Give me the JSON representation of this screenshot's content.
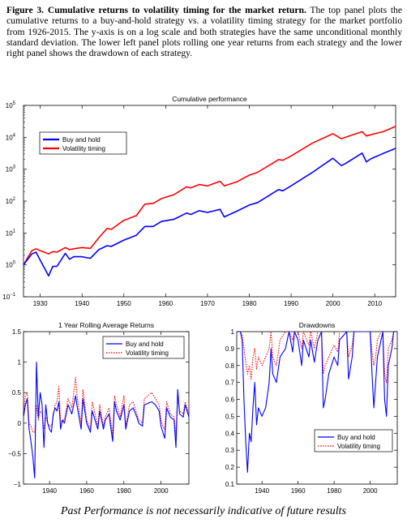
{
  "caption": {
    "label": "Figure 3.",
    "title": "Cumulative returns to volatility timing for the market return.",
    "body": "The top panel plots the cumulative returns to a buy-and-hold strategy vs. a volatility timing strategy for the market portfolio from 1926-2015. The y-axis is on a log scale and both strategies have the same unconditional monthly standard deviation. The lower left panel plots rolling one year returns from each strategy and the lower right panel shows the drawdown of each strategy."
  },
  "footer": "Past Performance is not necessarily indicative of future results",
  "colors": {
    "buy_and_hold": "#0000ff",
    "volatility_timing": "#ff0000",
    "axis": "#000000"
  },
  "chart_data": [
    {
      "id": "cumulative",
      "type": "line",
      "title": "Cumulative performance",
      "xlabel": "",
      "ylabel": "",
      "xlim": [
        1926,
        2015
      ],
      "ylim": [
        0.1,
        100000
      ],
      "yscale": "log",
      "x_ticks": [
        1930,
        1940,
        1950,
        1960,
        1970,
        1980,
        1990,
        2000,
        2010
      ],
      "y_ticks": [
        {
          "value": 0.1,
          "base": "10",
          "exp": "−1"
        },
        {
          "value": 1,
          "base": "10",
          "exp": "0"
        },
        {
          "value": 10,
          "base": "10",
          "exp": "1"
        },
        {
          "value": 100,
          "base": "10",
          "exp": "2"
        },
        {
          "value": 1000,
          "base": "10",
          "exp": "3"
        },
        {
          "value": 10000,
          "base": "10",
          "exp": "4"
        },
        {
          "value": 100000,
          "base": "10",
          "exp": "5"
        }
      ],
      "legend_position": "top-left",
      "series": [
        {
          "name": "Buy and hold",
          "color": "#0000ff",
          "x": [
            1926,
            1927,
            1928,
            1929,
            1930,
            1931,
            1932,
            1933,
            1934,
            1936,
            1937,
            1938,
            1940,
            1942,
            1944,
            1946,
            1947,
            1950,
            1953,
            1955,
            1957,
            1959,
            1962,
            1965,
            1966,
            1968,
            1970,
            1973,
            1974,
            1977,
            1980,
            1982,
            1987,
            1988,
            1990,
            1995,
            2000,
            2002,
            2003,
            2007,
            2008,
            2009,
            2012,
            2015
          ],
          "y": [
            1.0,
            1.5,
            2.2,
            2.5,
            1.4,
            0.8,
            0.45,
            0.9,
            0.9,
            2.3,
            1.5,
            1.8,
            1.8,
            1.6,
            3.0,
            4.0,
            3.8,
            6.0,
            8.5,
            16,
            16,
            23,
            27,
            42,
            38,
            50,
            44,
            55,
            32,
            48,
            75,
            90,
            230,
            210,
            300,
            780,
            2200,
            1300,
            1500,
            3200,
            1700,
            2100,
            3100,
            4500
          ]
        },
        {
          "name": "Volatility timing",
          "color": "#ff0000",
          "x": [
            1926,
            1927,
            1928,
            1929,
            1930,
            1931,
            1932,
            1933,
            1934,
            1936,
            1937,
            1938,
            1940,
            1942,
            1944,
            1946,
            1947,
            1950,
            1953,
            1955,
            1957,
            1959,
            1962,
            1965,
            1966,
            1968,
            1970,
            1973,
            1974,
            1977,
            1980,
            1982,
            1987,
            1988,
            1990,
            1995,
            2000,
            2002,
            2003,
            2007,
            2008,
            2009,
            2012,
            2015
          ],
          "y": [
            1.0,
            1.7,
            2.8,
            3.2,
            2.8,
            2.5,
            2.2,
            2.6,
            2.5,
            3.5,
            3.0,
            3.2,
            3.5,
            3.3,
            7,
            14,
            13,
            25,
            35,
            80,
            85,
            120,
            160,
            280,
            260,
            330,
            300,
            420,
            300,
            400,
            650,
            800,
            2000,
            1900,
            2600,
            6500,
            13000,
            9000,
            10000,
            15000,
            11000,
            12000,
            15000,
            22000
          ]
        }
      ]
    },
    {
      "id": "rolling",
      "type": "line",
      "title": "1 Year Rolling Average Returns",
      "xlabel": "",
      "ylabel": "",
      "xlim": [
        1926,
        2015
      ],
      "ylim": [
        -1,
        1.5
      ],
      "x_ticks": [
        1940,
        1960,
        1980,
        2000
      ],
      "y_ticks": [
        -1,
        -0.5,
        0,
        0.5,
        1,
        1.5
      ],
      "y_tick_labels": [
        "−1",
        "−0.5",
        "0",
        "0.5",
        "1",
        "1.5"
      ],
      "legend_position": "top-right",
      "series": [
        {
          "name": "Buy and hold",
          "color": "#0000ff",
          "style": "solid",
          "x": [
            1926,
            1927,
            1928,
            1929,
            1930,
            1931,
            1932,
            1933,
            1934,
            1935,
            1936,
            1937,
            1938,
            1939,
            1940,
            1941,
            1942,
            1943,
            1944,
            1945,
            1946,
            1947,
            1948,
            1950,
            1952,
            1954,
            1955,
            1957,
            1958,
            1960,
            1962,
            1963,
            1966,
            1967,
            1969,
            1970,
            1972,
            1974,
            1975,
            1976,
            1978,
            1980,
            1981,
            1983,
            1985,
            1987,
            1988,
            1990,
            1991,
            1995,
            1997,
            1999,
            2000,
            2001,
            2002,
            2003,
            2005,
            2007,
            2008,
            2009,
            2010,
            2012,
            2013,
            2015
          ],
          "y": [
            0.1,
            0.3,
            0.4,
            -0.1,
            -0.3,
            -0.55,
            -0.9,
            1.0,
            0.1,
            0.5,
            0.3,
            -0.4,
            0.3,
            0.0,
            -0.1,
            -0.15,
            0.15,
            0.25,
            0.2,
            0.35,
            -0.1,
            0.05,
            0.0,
            0.3,
            0.15,
            0.45,
            0.25,
            -0.1,
            0.4,
            0.0,
            -0.15,
            0.2,
            -0.1,
            0.2,
            -0.1,
            0.05,
            0.15,
            -0.3,
            0.35,
            0.2,
            0.05,
            0.3,
            -0.1,
            0.2,
            0.25,
            0.1,
            0.0,
            -0.05,
            0.3,
            0.35,
            0.3,
            0.2,
            -0.05,
            -0.15,
            -0.25,
            0.25,
            0.1,
            0.05,
            -0.4,
            0.55,
            0.15,
            0.1,
            0.3,
            0.1
          ]
        },
        {
          "name": "Volatility timing",
          "color": "#ff0000",
          "style": "dotted",
          "x": [
            1926,
            1927,
            1928,
            1929,
            1930,
            1931,
            1932,
            1933,
            1934,
            1935,
            1936,
            1937,
            1938,
            1939,
            1940,
            1941,
            1942,
            1943,
            1944,
            1945,
            1946,
            1947,
            1948,
            1950,
            1952,
            1954,
            1955,
            1957,
            1958,
            1960,
            1962,
            1963,
            1966,
            1967,
            1969,
            1970,
            1972,
            1974,
            1975,
            1976,
            1978,
            1980,
            1981,
            1983,
            1985,
            1987,
            1988,
            1990,
            1991,
            1995,
            1997,
            1999,
            2000,
            2001,
            2002,
            2003,
            2005,
            2007,
            2008,
            2009,
            2010,
            2012,
            2013,
            2015
          ],
          "y": [
            0.15,
            0.45,
            0.5,
            0.0,
            -0.05,
            -0.15,
            -0.15,
            0.3,
            0.05,
            0.2,
            0.15,
            -0.1,
            0.1,
            0.0,
            -0.05,
            -0.05,
            0.1,
            0.3,
            0.35,
            0.6,
            0.0,
            0.05,
            0.05,
            0.4,
            0.25,
            0.75,
            0.4,
            0.0,
            0.55,
            0.05,
            -0.1,
            0.35,
            -0.05,
            0.3,
            -0.05,
            0.1,
            0.25,
            -0.2,
            0.45,
            0.3,
            0.1,
            0.45,
            -0.05,
            0.3,
            0.35,
            0.15,
            0.05,
            0.0,
            0.4,
            0.5,
            0.4,
            0.3,
            0.05,
            -0.05,
            -0.1,
            0.35,
            0.15,
            0.1,
            -0.2,
            0.45,
            0.2,
            0.15,
            0.35,
            0.15
          ]
        }
      ]
    },
    {
      "id": "drawdowns",
      "type": "line",
      "title": "Drawdowns",
      "xlabel": "",
      "ylabel": "",
      "xlim": [
        1926,
        2015
      ],
      "ylim": [
        0.1,
        1
      ],
      "x_ticks": [
        1940,
        1960,
        1980,
        2000
      ],
      "y_ticks": [
        0.1,
        0.2,
        0.3,
        0.4,
        0.5,
        0.6,
        0.7,
        0.8,
        0.9,
        1
      ],
      "y_tick_labels": [
        "0.1",
        "0.2",
        "0.3",
        "0.4",
        "0.5",
        "0.6",
        "0.7",
        "0.8",
        "0.9",
        "1"
      ],
      "legend_position": "bottom-right",
      "series": [
        {
          "name": "Buy and hold",
          "color": "#0000ff",
          "style": "solid",
          "x": [
            1926,
            1928,
            1929,
            1930,
            1931,
            1932,
            1933,
            1934,
            1935,
            1936,
            1937,
            1938,
            1940,
            1942,
            1944,
            1945,
            1946,
            1948,
            1950,
            1953,
            1955,
            1957,
            1958,
            1960,
            1962,
            1963,
            1966,
            1967,
            1969,
            1971,
            1973,
            1974,
            1975,
            1977,
            1980,
            1982,
            1983,
            1987,
            1988,
            1990,
            1991,
            1995,
            2000,
            2001,
            2002,
            2003,
            2004,
            2006,
            2007,
            2008,
            2009,
            2010,
            2012,
            2013,
            2015
          ],
          "y": [
            1.0,
            1.0,
            0.95,
            0.6,
            0.35,
            0.17,
            0.4,
            0.35,
            0.55,
            0.7,
            0.45,
            0.55,
            0.5,
            0.55,
            0.7,
            0.9,
            0.75,
            0.7,
            0.85,
            0.9,
            1.0,
            0.88,
            1.0,
            0.95,
            0.8,
            0.95,
            0.85,
            0.95,
            0.82,
            0.95,
            1.0,
            0.55,
            0.6,
            0.75,
            0.85,
            0.8,
            0.95,
            1.0,
            0.72,
            0.85,
            1.0,
            1.0,
            1.0,
            0.75,
            0.55,
            0.7,
            0.85,
            0.95,
            1.0,
            0.6,
            0.5,
            0.8,
            0.9,
            1.0,
            1.0
          ]
        },
        {
          "name": "Volatility timing",
          "color": "#ff0000",
          "style": "dotted",
          "x": [
            1926,
            1928,
            1929,
            1930,
            1931,
            1932,
            1933,
            1934,
            1935,
            1936,
            1937,
            1938,
            1940,
            1942,
            1944,
            1945,
            1946,
            1948,
            1950,
            1953,
            1955,
            1957,
            1958,
            1960,
            1962,
            1963,
            1966,
            1967,
            1969,
            1971,
            1973,
            1974,
            1975,
            1977,
            1980,
            1982,
            1983,
            1987,
            1988,
            1990,
            1991,
            1995,
            2000,
            2001,
            2002,
            2003,
            2004,
            2006,
            2007,
            2008,
            2009,
            2010,
            2012,
            2013,
            2015
          ],
          "y": [
            1.0,
            1.0,
            0.98,
            0.9,
            0.82,
            0.75,
            0.8,
            0.72,
            0.85,
            0.9,
            0.78,
            0.85,
            0.8,
            0.85,
            0.9,
            1.0,
            0.85,
            0.8,
            0.95,
            1.0,
            1.0,
            0.95,
            1.0,
            1.0,
            0.9,
            1.0,
            0.92,
            1.0,
            0.9,
            1.0,
            1.0,
            0.75,
            0.8,
            0.85,
            0.92,
            0.88,
            1.0,
            1.0,
            0.85,
            0.92,
            1.0,
            1.0,
            1.0,
            0.88,
            0.8,
            0.85,
            0.95,
            1.0,
            1.0,
            0.75,
            0.7,
            0.9,
            0.95,
            1.0,
            1.0
          ]
        }
      ]
    }
  ]
}
